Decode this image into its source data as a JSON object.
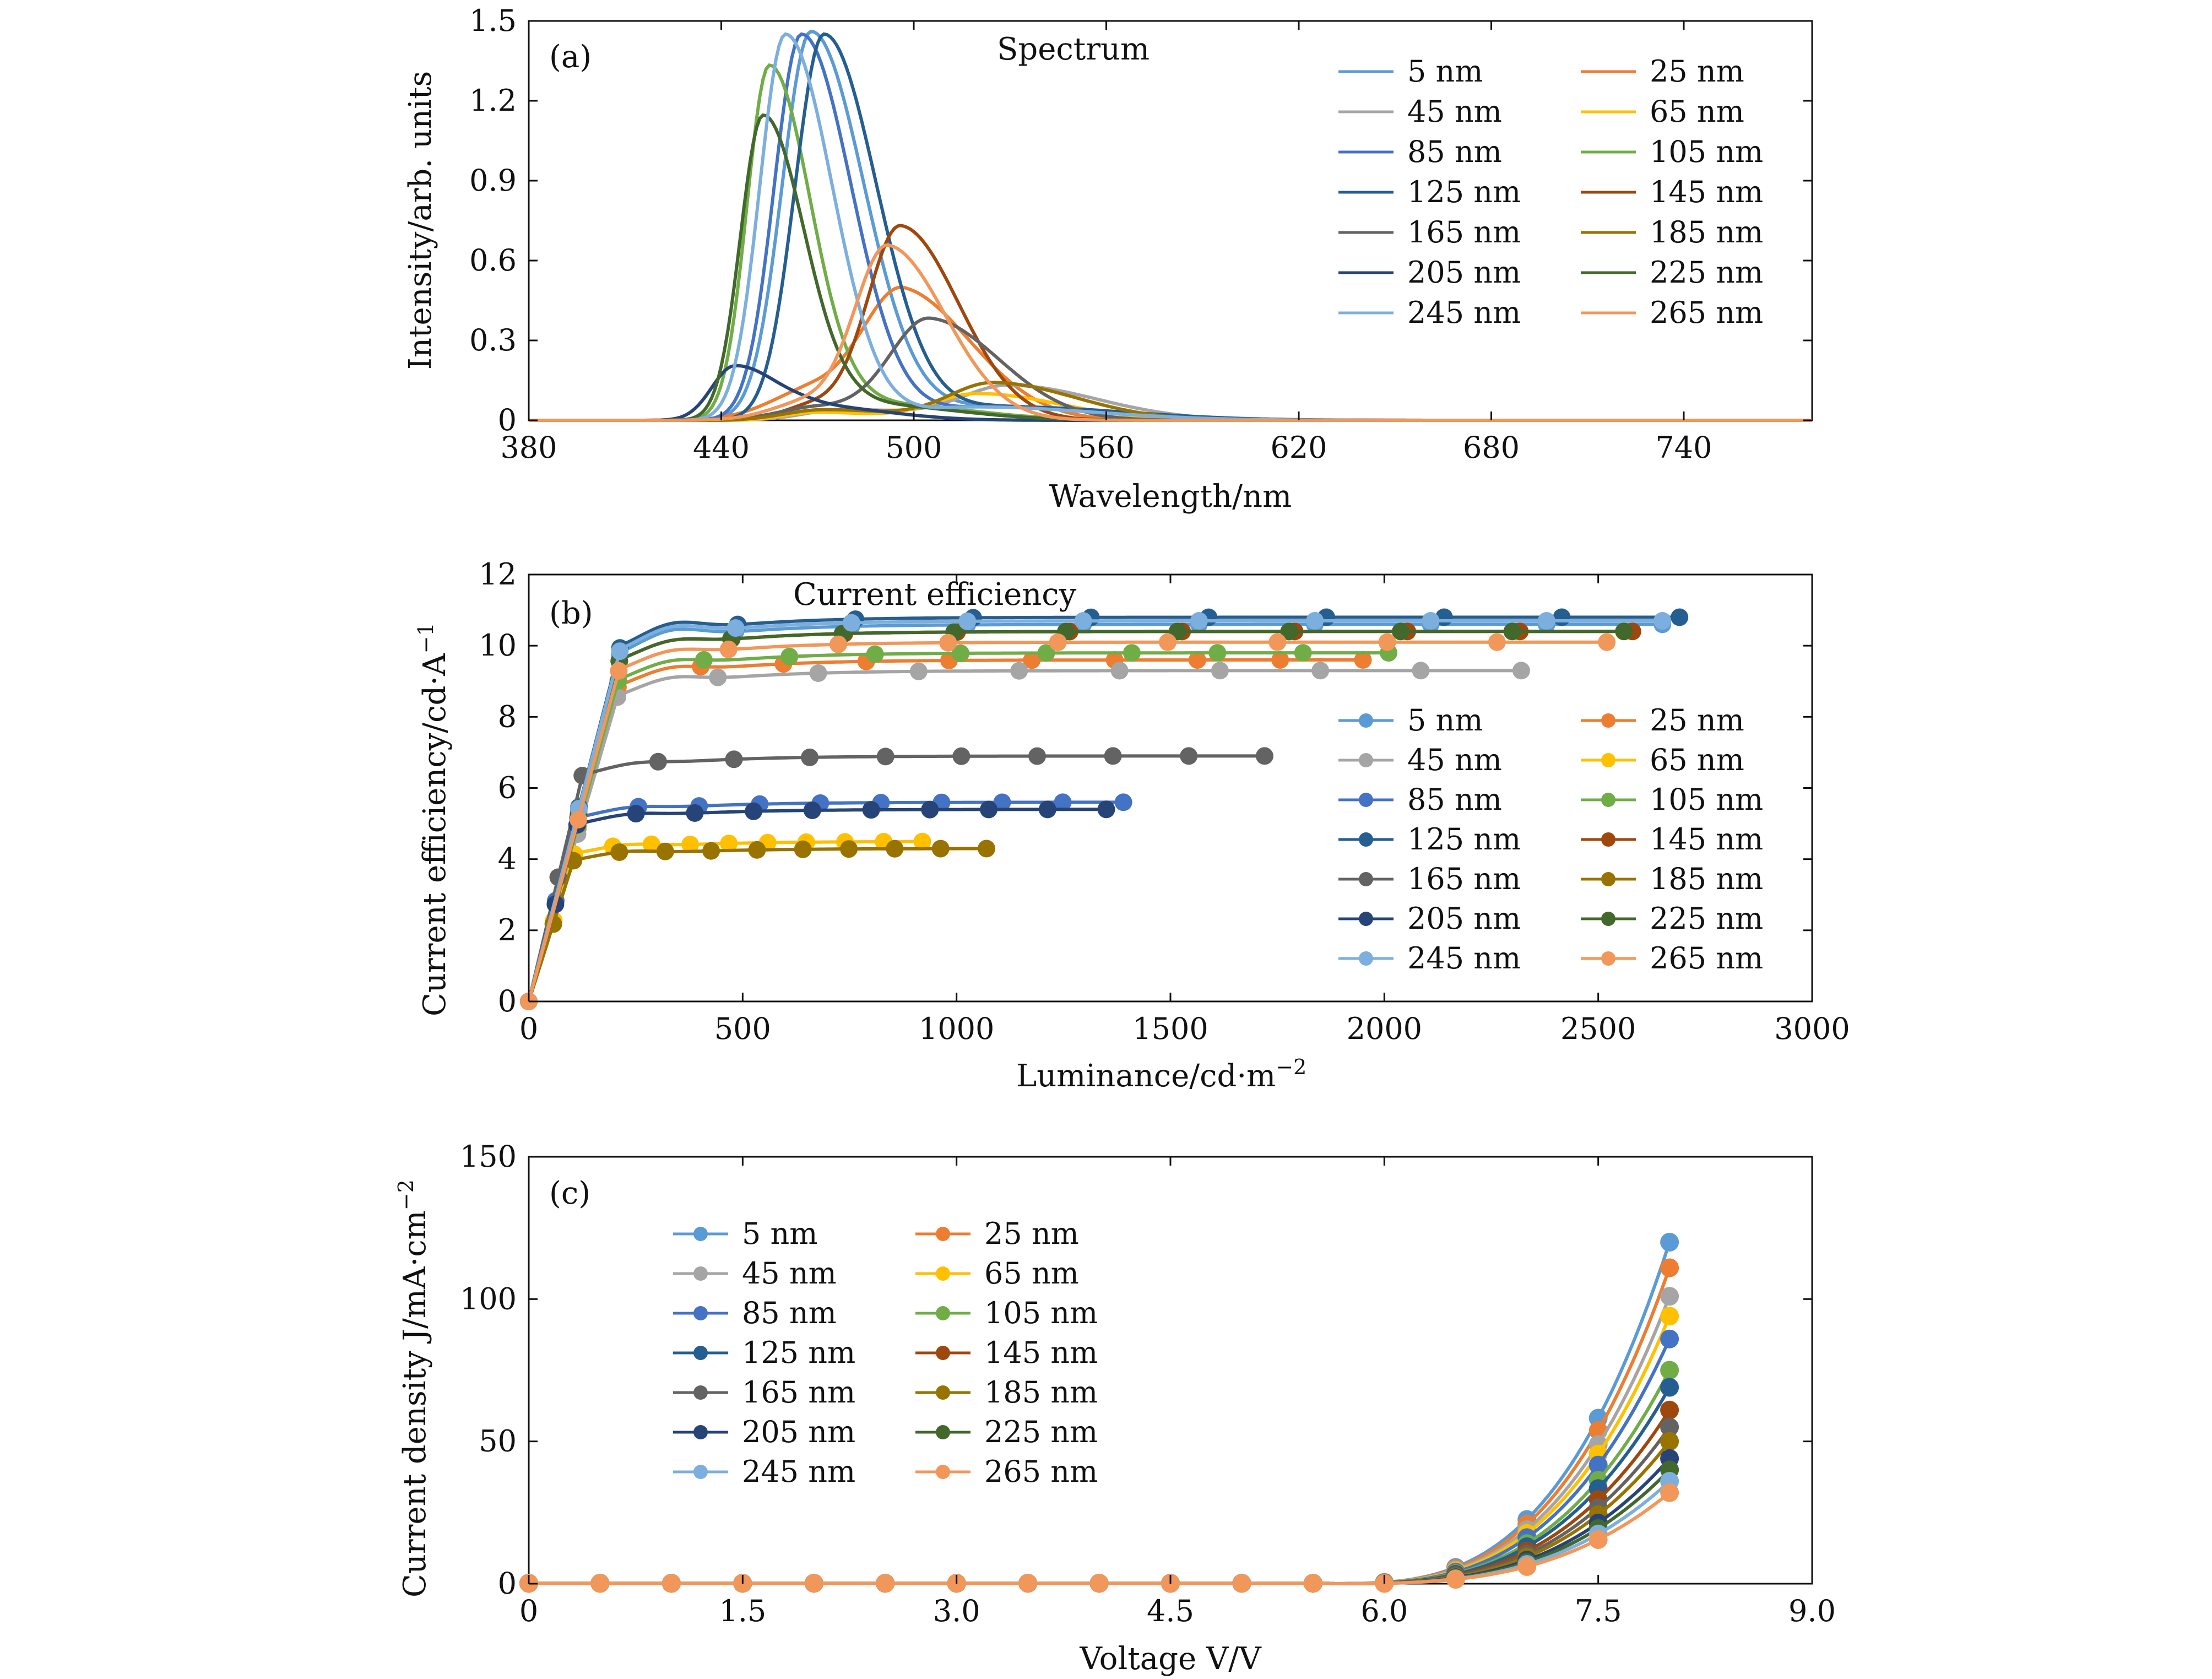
{
  "series_labels": [
    "5 nm",
    "25 nm",
    "45 nm",
    "65 nm",
    "85 nm",
    "105 nm",
    "125 nm",
    "145 nm",
    "165 nm",
    "185 nm",
    "205 nm",
    "225 nm",
    "245 nm",
    "265 nm"
  ],
  "colors": [
    "#5b9bd5",
    "#ed7d31",
    "#a5a5a5",
    "#ffc000",
    "#4472c4",
    "#70ad47",
    "#255e91",
    "#9e480e",
    "#636363",
    "#997300",
    "#264478",
    "#43682b",
    "#7cafdd",
    "#f1975a"
  ],
  "panel_a": {
    "tag": "(a)",
    "chart_data": {
      "type": "line",
      "title": "Spectrum",
      "xlabel": "Wavelength/nm",
      "ylabel": "Intensity/arb. units",
      "xlim": [
        380,
        780
      ],
      "ylim": [
        0,
        1.5
      ],
      "xticks": [
        "380",
        "440",
        "500",
        "560",
        "620",
        "680",
        "740"
      ],
      "yticks": [
        "0",
        "0.3",
        "0.6",
        "0.9",
        "1.2",
        "1.5"
      ],
      "legend": "top-right, 2 columns",
      "series": [
        {
          "name": "5 nm",
          "peaks": [
            [
              468,
              1.46,
              9
            ],
            [
              525,
              0.05,
              20
            ]
          ]
        },
        {
          "name": "25 nm",
          "peaks": [
            [
              497,
              0.43,
              12
            ],
            [
              470,
              0.12,
              14
            ]
          ]
        },
        {
          "name": "45 nm",
          "peaks": [
            [
              530,
              0.13,
              15
            ],
            [
              478,
              0.04,
              12
            ]
          ]
        },
        {
          "name": "65 nm",
          "peaks": [
            [
              520,
              0.1,
              14
            ],
            [
              470,
              0.03,
              10
            ]
          ]
        },
        {
          "name": "85 nm",
          "peaks": [
            [
              465,
              1.45,
              8.5
            ],
            [
              525,
              0.05,
              20
            ]
          ]
        },
        {
          "name": "105 nm",
          "peaks": [
            [
              455,
              1.33,
              7
            ],
            [
              490,
              0.06,
              15
            ]
          ]
        },
        {
          "name": "125 nm",
          "peaks": [
            [
              472,
              1.45,
              9
            ],
            [
              530,
              0.05,
              20
            ]
          ]
        },
        {
          "name": "145 nm",
          "peaks": [
            [
              496,
              0.71,
              10
            ],
            [
              470,
              0.06,
              10
            ]
          ]
        },
        {
          "name": "165 nm",
          "peaks": [
            [
              505,
              0.37,
              12
            ],
            [
              470,
              0.05,
              12
            ]
          ]
        },
        {
          "name": "185 nm",
          "peaks": [
            [
              525,
              0.14,
              14
            ],
            [
              472,
              0.04,
              12
            ]
          ]
        },
        {
          "name": "205 nm",
          "peaks": [
            [
              444,
              0.2,
              7
            ],
            [
              470,
              0.05,
              12
            ]
          ]
        },
        {
          "name": "225 nm",
          "peaks": [
            [
              453,
              1.14,
              7
            ],
            [
              485,
              0.06,
              15
            ]
          ]
        },
        {
          "name": "245 nm",
          "peaks": [
            [
              460,
              1.45,
              8
            ],
            [
              520,
              0.05,
              20
            ]
          ]
        },
        {
          "name": "265 nm",
          "peaks": [
            [
              492,
              0.62,
              10
            ],
            [
              468,
              0.07,
              12
            ]
          ]
        }
      ]
    }
  },
  "panel_b": {
    "tag": "(b)",
    "chart_data": {
      "type": "line",
      "title": "Current efficiency",
      "xlabel": "Luminance/cd·m",
      "xlabel_sup": "−2",
      "ylabel": "Current efficiency/cd·A",
      "ylabel_sup": "−1",
      "xlim": [
        0,
        3000
      ],
      "ylim": [
        0,
        12
      ],
      "xticks": [
        "0",
        "500",
        "1000",
        "1500",
        "2000",
        "2500",
        "3000"
      ],
      "yticks": [
        "0",
        "2",
        "4",
        "6",
        "8",
        "10",
        "12"
      ],
      "legend": "lower-right, 2 columns",
      "series": [
        {
          "name": "5 nm",
          "plateau": 10.6,
          "max_x": 2650,
          "bump": 0.3
        },
        {
          "name": "25 nm",
          "plateau": 9.6,
          "max_x": 1950,
          "bump": 0.2
        },
        {
          "name": "45 nm",
          "plateau": 9.3,
          "max_x": 2320,
          "bump": 0.2
        },
        {
          "name": "65 nm",
          "plateau": 4.5,
          "max_x": 920,
          "bump": 0.1
        },
        {
          "name": "85 nm",
          "plateau": 5.6,
          "max_x": 1390,
          "bump": 0.1
        },
        {
          "name": "105 nm",
          "plateau": 9.8,
          "max_x": 2010,
          "bump": 0.2
        },
        {
          "name": "125 nm",
          "plateau": 10.8,
          "max_x": 2690,
          "bump": 0.3
        },
        {
          "name": "145 nm",
          "plateau": 10.4,
          "max_x": 2580,
          "bump": 0.2
        },
        {
          "name": "165 nm",
          "plateau": 6.9,
          "max_x": 1720,
          "bump": 0.1
        },
        {
          "name": "185 nm",
          "plateau": 4.3,
          "max_x": 1070,
          "bump": 0.1
        },
        {
          "name": "205 nm",
          "plateau": 5.4,
          "max_x": 1350,
          "bump": 0.1
        },
        {
          "name": "225 nm",
          "plateau": 10.4,
          "max_x": 2560,
          "bump": 0.2
        },
        {
          "name": "245 nm",
          "plateau": 10.7,
          "max_x": 2650,
          "bump": 0.3
        },
        {
          "name": "265 nm",
          "plateau": 10.1,
          "max_x": 2520,
          "bump": 0.2
        }
      ]
    }
  },
  "panel_c": {
    "tag": "(c)",
    "chart_data": {
      "type": "line",
      "xlabel": "Voltage V/V",
      "ylabel": "Current density J/mA·cm",
      "ylabel_sup": "−2",
      "xlim": [
        0,
        9
      ],
      "ylim": [
        0,
        150
      ],
      "xticks": [
        "0",
        "1.5",
        "3.0",
        "4.5",
        "6.0",
        "7.5",
        "9.0"
      ],
      "yticks": [
        "0",
        "50",
        "100",
        "150"
      ],
      "legend": "top-left, 2 columns",
      "x": [
        0,
        0.5,
        1,
        1.5,
        2,
        2.5,
        3,
        3.5,
        4,
        4.5,
        5,
        5.5,
        6,
        6.5,
        7,
        7.5,
        8
      ],
      "series": [
        {
          "name": "5 nm",
          "j_at_8V": 120
        },
        {
          "name": "25 nm",
          "j_at_8V": 111
        },
        {
          "name": "45 nm",
          "j_at_8V": 101
        },
        {
          "name": "65 nm",
          "j_at_8V": 94
        },
        {
          "name": "85 nm",
          "j_at_8V": 86
        },
        {
          "name": "105 nm",
          "j_at_8V": 75
        },
        {
          "name": "125 nm",
          "j_at_8V": 69
        },
        {
          "name": "145 nm",
          "j_at_8V": 61
        },
        {
          "name": "165 nm",
          "j_at_8V": 55
        },
        {
          "name": "185 nm",
          "j_at_8V": 50
        },
        {
          "name": "205 nm",
          "j_at_8V": 44
        },
        {
          "name": "225 nm",
          "j_at_8V": 40
        },
        {
          "name": "245 nm",
          "j_at_8V": 36
        },
        {
          "name": "265 nm",
          "j_at_8V": 32
        }
      ]
    }
  }
}
